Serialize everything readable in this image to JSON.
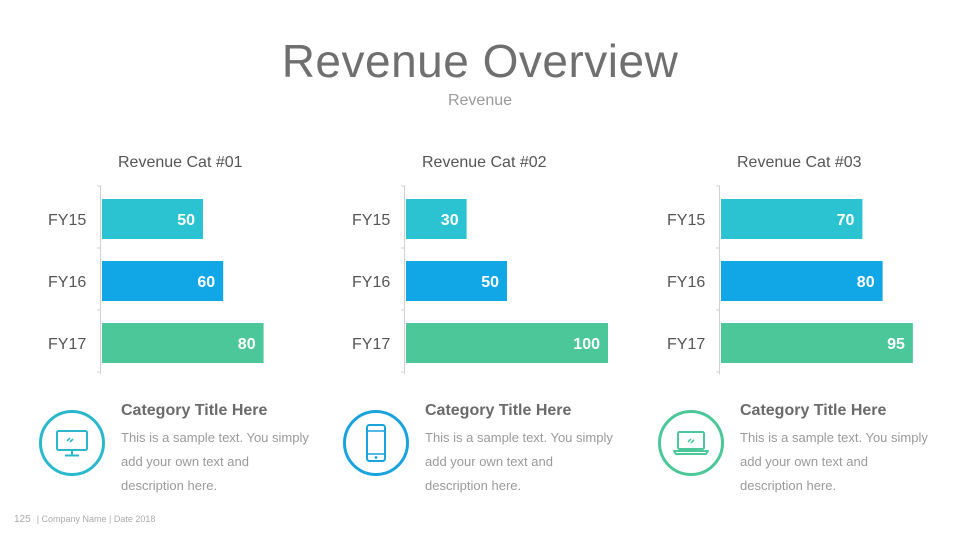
{
  "slide": {
    "title": "Revenue Overview",
    "subtitle": "Revenue",
    "page_number": "125",
    "footer_text": "| Company Name | Date 2018"
  },
  "colors": {
    "FY15": "#2bc3d1",
    "FY16": "#11a6e6",
    "FY17": "#4cc79a",
    "icon1": "#2bb8cc",
    "icon2": "#1aa3dd",
    "icon3": "#4cc79a"
  },
  "chart_data": [
    {
      "type": "bar",
      "orientation": "horizontal",
      "title": "Revenue Cat #01",
      "categories": [
        "FY15",
        "FY16",
        "FY17"
      ],
      "values": [
        50,
        60,
        80
      ],
      "xlim": [
        0,
        100
      ]
    },
    {
      "type": "bar",
      "orientation": "horizontal",
      "title": "Revenue Cat #02",
      "categories": [
        "FY15",
        "FY16",
        "FY17"
      ],
      "values": [
        30,
        50,
        100
      ],
      "xlim": [
        0,
        100
      ]
    },
    {
      "type": "bar",
      "orientation": "horizontal",
      "title": "Revenue Cat #03",
      "categories": [
        "FY15",
        "FY16",
        "FY17"
      ],
      "values": [
        70,
        80,
        95
      ],
      "xlim": [
        0,
        100
      ]
    }
  ],
  "descriptions": [
    {
      "icon": "monitor-icon",
      "title": "Category Title Here",
      "text": "This is a sample text. You simply add your own text and description here."
    },
    {
      "icon": "smartphone-icon",
      "title": "Category Title Here",
      "text": "This is a sample text. You simply add your own text and description here."
    },
    {
      "icon": "laptop-icon",
      "title": "Category Title Here",
      "text": "This is a sample text. You simply add your own text and description here."
    }
  ]
}
